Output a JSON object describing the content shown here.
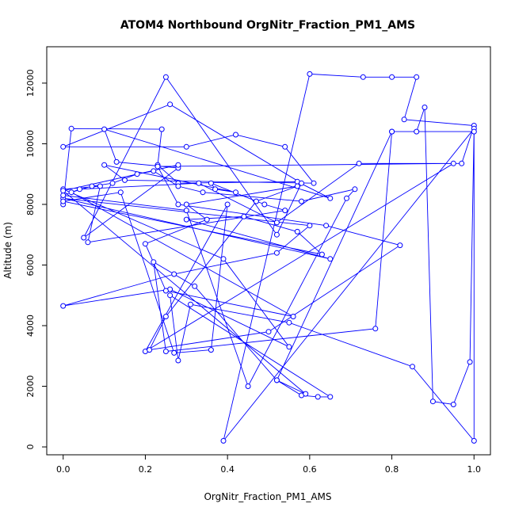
{
  "chart_data": {
    "type": "line",
    "title": "ATOM4 Northbound OrgNitr_Fraction_PM1_AMS",
    "xlabel": "OrgNitr_Fraction_PM1_AMS",
    "ylabel": "Altitude (m)",
    "xlim": [
      -0.04,
      1.04
    ],
    "ylim": [
      -260,
      13200
    ],
    "xticks": [
      "0.0",
      "0.2",
      "0.4",
      "0.6",
      "0.8",
      "1.0"
    ],
    "yticks": [
      "0",
      "2000",
      "4000",
      "6000",
      "8000",
      "10000",
      "12000"
    ],
    "color": "#0000ff",
    "marker": "open-circle",
    "series": [
      {
        "x": [
          0.0,
          0.02,
          0.24,
          0.23,
          0.28,
          0.57,
          0.65,
          0.1,
          0.13,
          0.28,
          0.05,
          0.25,
          0.52,
          0.58,
          0.26,
          0.0,
          0.3,
          0.42,
          0.54,
          0.61,
          0.15,
          0.1,
          0.42,
          0.37,
          0.36,
          0.49,
          0.54,
          0.06,
          0.09,
          0.0,
          0.39,
          0.55,
          0.26,
          0.0,
          0.27,
          0.52,
          0.6,
          0.0,
          0.65,
          0.3,
          0.44,
          0.57,
          0.63,
          0.0,
          0.14,
          0.27,
          0.36,
          0.4,
          0.2,
          0.95,
          0.23,
          0.28,
          0.64,
          0.82,
          0.5,
          0.21,
          0.25,
          0.47,
          0.57,
          0.3,
          0.35,
          0.2,
          0.25,
          0.56,
          0.02,
          0.07,
          0.12,
          0.18,
          0.22,
          0.28,
          0.34,
          0.58,
          0.71,
          0.69,
          0.45,
          0.3,
          0.0,
          0.04,
          0.33,
          0.52,
          0.72,
          0.97,
          1.0,
          0.83,
          0.86,
          0.8,
          0.73,
          0.6,
          0.39,
          1.0,
          0.99,
          0.95,
          0.9,
          0.88,
          0.86,
          0.8,
          0.76,
          0.25,
          0.22,
          0.32,
          0.52,
          0.58,
          0.62,
          0.65,
          0.26,
          0.28,
          0.31,
          0.55,
          0.85,
          1.0,
          1.0,
          0.8,
          0.52,
          0.59,
          0.0,
          0.28
        ],
        "y": [
          8000,
          10500,
          10480,
          9300,
          8700,
          8750,
          8200,
          10480,
          9400,
          9200,
          6900,
          12200,
          7000,
          8700,
          11300,
          9900,
          9900,
          10300,
          9900,
          8700,
          8800,
          9300,
          8400,
          8500,
          8700,
          8000,
          7800,
          6750,
          8600,
          8500,
          6200,
          3300,
          5200,
          4650,
          5700,
          6400,
          7300,
          8200,
          6200,
          7500,
          7600,
          7100,
          6350,
          8100,
          8400,
          3100,
          3200,
          8000,
          3150,
          9350,
          9250,
          8000,
          7300,
          6650,
          3800,
          3200,
          4300,
          8100,
          8600,
          8000,
          7500,
          6700,
          5150,
          4300,
          8400,
          8600,
          8700,
          9000,
          9100,
          8600,
          8400,
          8100,
          8500,
          8200,
          2000,
          7800,
          8300,
          8500,
          8700,
          7400,
          9350,
          9350,
          10600,
          10800,
          12200,
          12200,
          12200,
          12300,
          200,
          10500,
          2800,
          1400,
          1500,
          11200,
          10400,
          10400,
          3900,
          3150,
          6100,
          5300,
          2200,
          1700,
          1650,
          1650,
          5000,
          2850,
          4700,
          4100,
          2650,
          200,
          10400,
          10400,
          2200,
          1750,
          8450,
          9300
        ]
      }
    ]
  }
}
